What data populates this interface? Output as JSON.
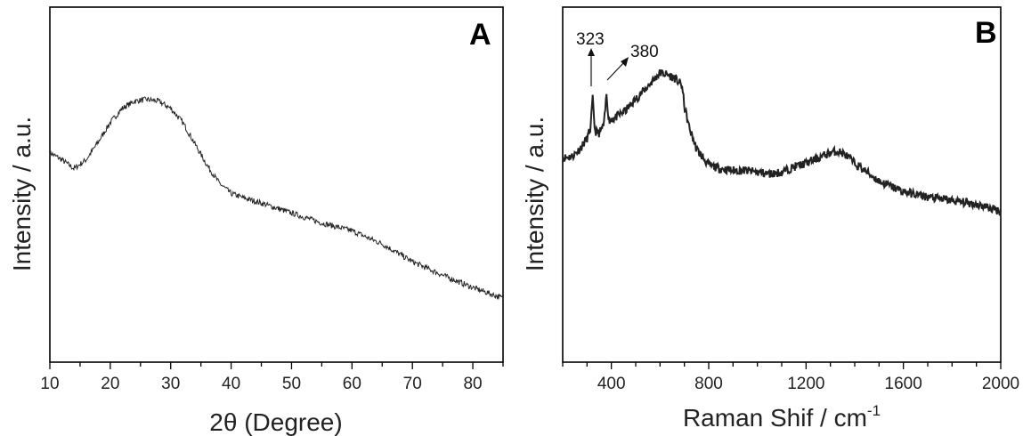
{
  "chart_data": [
    {
      "type": "line",
      "panel": "A",
      "xlabel": "2θ (Degree)",
      "ylabel": "Intensity / a.u.",
      "xlim": [
        10,
        85
      ],
      "ylim": [
        0,
        1
      ],
      "xticks": [
        10,
        20,
        30,
        40,
        50,
        60,
        70,
        80
      ],
      "yticks_shown": false,
      "grid": false,
      "series": [
        {
          "points": [
            [
              10,
              0.59
            ],
            [
              12,
              0.57
            ],
            [
              14,
              0.545
            ],
            [
              16,
              0.57
            ],
            [
              18,
              0.62
            ],
            [
              20,
              0.675
            ],
            [
              22,
              0.715
            ],
            [
              24,
              0.735
            ],
            [
              26,
              0.74
            ],
            [
              28,
              0.735
            ],
            [
              30,
              0.715
            ],
            [
              32,
              0.675
            ],
            [
              34,
              0.615
            ],
            [
              36,
              0.555
            ],
            [
              38,
              0.505
            ],
            [
              40,
              0.475
            ],
            [
              42,
              0.463
            ],
            [
              45,
              0.448
            ],
            [
              50,
              0.42
            ],
            [
              55,
              0.392
            ],
            [
              60,
              0.37
            ],
            [
              65,
              0.333
            ],
            [
              70,
              0.283
            ],
            [
              75,
              0.245
            ],
            [
              80,
              0.21
            ],
            [
              85,
              0.18
            ]
          ]
        }
      ]
    },
    {
      "type": "line",
      "panel": "B",
      "xlabel": "Raman Shif / cm",
      "xlabel_superscript": "-1",
      "ylabel": "Intensity  / a.u.",
      "xlim": [
        200,
        2000
      ],
      "ylim": [
        0,
        1
      ],
      "xticks": [
        400,
        800,
        1200,
        1600,
        2000
      ],
      "yticks_shown": false,
      "grid": false,
      "annotations": [
        {
          "text": "323",
          "x": 323
        },
        {
          "text": "380",
          "x": 380
        }
      ],
      "series": [
        {
          "points": [
            [
              200,
              0.575
            ],
            [
              240,
              0.58
            ],
            [
              270,
              0.6
            ],
            [
              300,
              0.63
            ],
            [
              315,
              0.66
            ],
            [
              323,
              0.745
            ],
            [
              333,
              0.65
            ],
            [
              350,
              0.645
            ],
            [
              370,
              0.67
            ],
            [
              380,
              0.755
            ],
            [
              390,
              0.68
            ],
            [
              420,
              0.69
            ],
            [
              460,
              0.71
            ],
            [
              500,
              0.74
            ],
            [
              540,
              0.77
            ],
            [
              580,
              0.8
            ],
            [
              600,
              0.815
            ],
            [
              630,
              0.81
            ],
            [
              660,
              0.8
            ],
            [
              690,
              0.78
            ],
            [
              700,
              0.72
            ],
            [
              720,
              0.66
            ],
            [
              750,
              0.6
            ],
            [
              800,
              0.555
            ],
            [
              850,
              0.545
            ],
            [
              900,
              0.54
            ],
            [
              950,
              0.54
            ],
            [
              1000,
              0.535
            ],
            [
              1050,
              0.53
            ],
            [
              1100,
              0.535
            ],
            [
              1150,
              0.55
            ],
            [
              1200,
              0.56
            ],
            [
              1250,
              0.575
            ],
            [
              1300,
              0.59
            ],
            [
              1330,
              0.595
            ],
            [
              1360,
              0.585
            ],
            [
              1400,
              0.56
            ],
            [
              1450,
              0.535
            ],
            [
              1500,
              0.51
            ],
            [
              1550,
              0.495
            ],
            [
              1600,
              0.48
            ],
            [
              1700,
              0.465
            ],
            [
              1800,
              0.455
            ],
            [
              1900,
              0.445
            ],
            [
              2000,
              0.425
            ]
          ]
        }
      ]
    }
  ],
  "panels": {
    "A": {
      "letter": "A",
      "xlabel": "2θ (Degree)",
      "ylabel": "Intensity / a.u."
    },
    "B": {
      "letter": "B",
      "xlabel": "Raman Shif / cm",
      "xlabel_sup": "-1",
      "ylabel": "Intensity  / a.u.",
      "annot1": "323",
      "annot2": "380"
    }
  }
}
